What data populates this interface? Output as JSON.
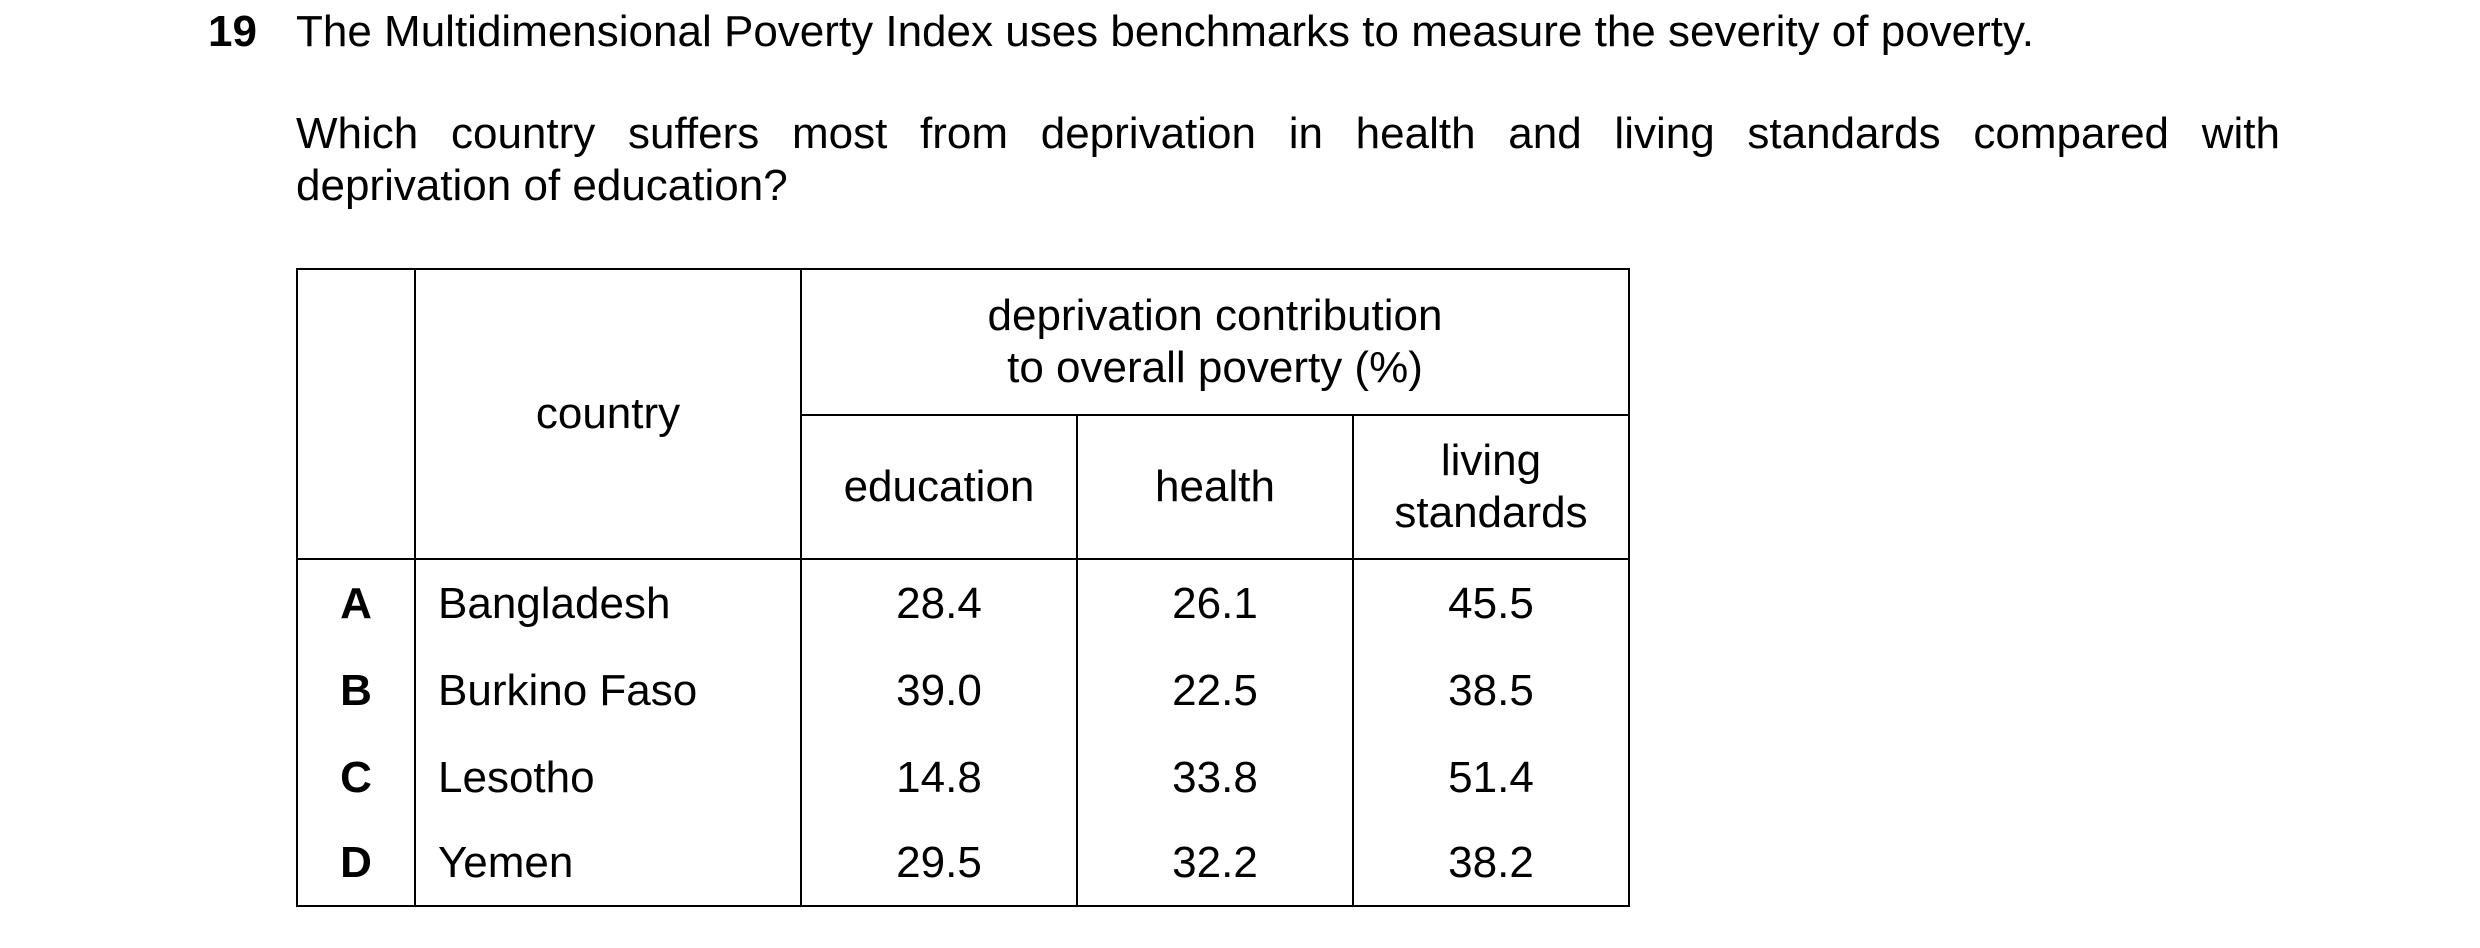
{
  "question": {
    "number": "19",
    "stem": "The Multidimensional Poverty Index uses benchmarks to measure the severity of poverty.",
    "prompt_line1": "Which country suffers most from deprivation in health and living standards compared with",
    "prompt_line2": "deprivation of education?"
  },
  "table": {
    "header_country": "country",
    "header_group_line1": "deprivation contribution",
    "header_group_line2": "to overall poverty (%)",
    "header_education": "education",
    "header_health": "health",
    "header_living_line1": "living",
    "header_living_line2": "standards",
    "rows": [
      {
        "letter": "A",
        "country": "Bangladesh",
        "education": "28.4",
        "health": "26.1",
        "living": "45.5"
      },
      {
        "letter": "B",
        "country": "Burkino Faso",
        "education": "39.0",
        "health": "22.5",
        "living": "38.5"
      },
      {
        "letter": "C",
        "country": "Lesotho",
        "education": "14.8",
        "health": "33.8",
        "living": "51.4"
      },
      {
        "letter": "D",
        "country": "Yemen",
        "education": "29.5",
        "health": "32.2",
        "living": "38.2"
      }
    ]
  }
}
